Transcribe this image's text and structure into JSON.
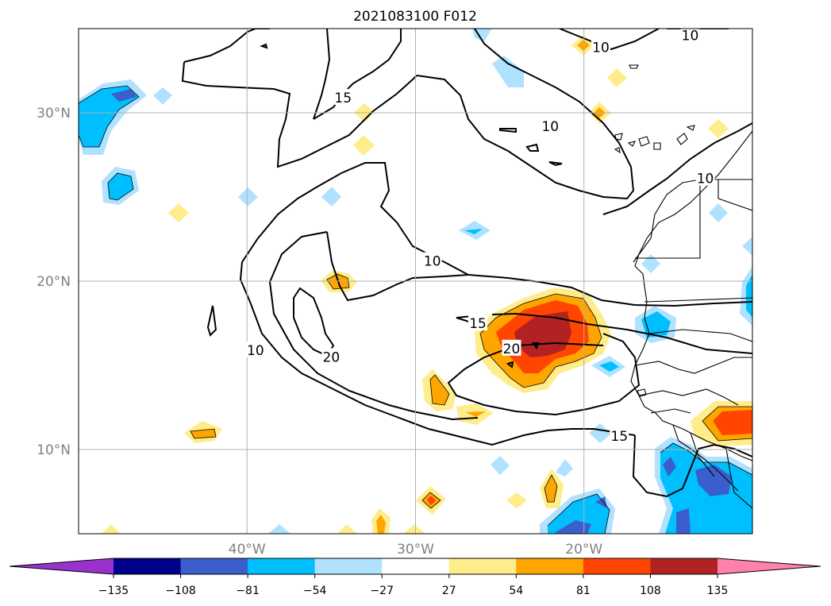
{
  "chart_data": {
    "type": "contour-map",
    "title": "2021083100 F012",
    "map_extent": {
      "lon": [
        -50,
        -10
      ],
      "lat": [
        5,
        35
      ]
    },
    "x_ticks": [
      {
        "lon": -40,
        "label": "40°W"
      },
      {
        "lon": -30,
        "label": "30°W"
      },
      {
        "lon": -20,
        "label": "20°W"
      }
    ],
    "y_ticks": [
      {
        "lat": 30,
        "label": "30°N"
      },
      {
        "lat": 20,
        "label": "20°N"
      },
      {
        "lat": 10,
        "label": "10°N"
      }
    ],
    "grid": true,
    "colorbar": {
      "orientation": "horizontal",
      "extend": "both",
      "levels": [
        -135,
        -108,
        -81,
        -54,
        -27,
        27,
        54,
        81,
        108,
        135
      ],
      "tick_labels": [
        "−135",
        "−108",
        "−81",
        "−54",
        "−27",
        "27",
        "54",
        "81",
        "108",
        "135"
      ],
      "colors": [
        "#9932cc",
        "#00008b",
        "#3a5fcd",
        "#00bfff",
        "#b0e2ff",
        "#ffffff",
        "#ffec8b",
        "#ffa500",
        "#ff4500",
        "#b22222",
        "#ff82ab"
      ]
    },
    "contour_labels": [
      {
        "value": "10",
        "lon": -39.5,
        "lat": 15.9
      },
      {
        "value": "10",
        "lon": -29.0,
        "lat": 21.2
      },
      {
        "value": "10",
        "lon": -22.0,
        "lat": 29.2
      },
      {
        "value": "10",
        "lon": -19.0,
        "lat": 33.9
      },
      {
        "value": "10",
        "lon": -13.7,
        "lat": 34.6
      },
      {
        "value": "10",
        "lon": -12.8,
        "lat": 26.1
      },
      {
        "value": "15",
        "lon": -34.3,
        "lat": 30.9
      },
      {
        "value": "15",
        "lon": -26.3,
        "lat": 17.5
      },
      {
        "value": "15",
        "lon": -17.9,
        "lat": 10.8
      },
      {
        "value": "20",
        "lon": -24.3,
        "lat": 16.0
      },
      {
        "value": "20",
        "lon": -35.0,
        "lat": 15.5
      }
    ]
  }
}
